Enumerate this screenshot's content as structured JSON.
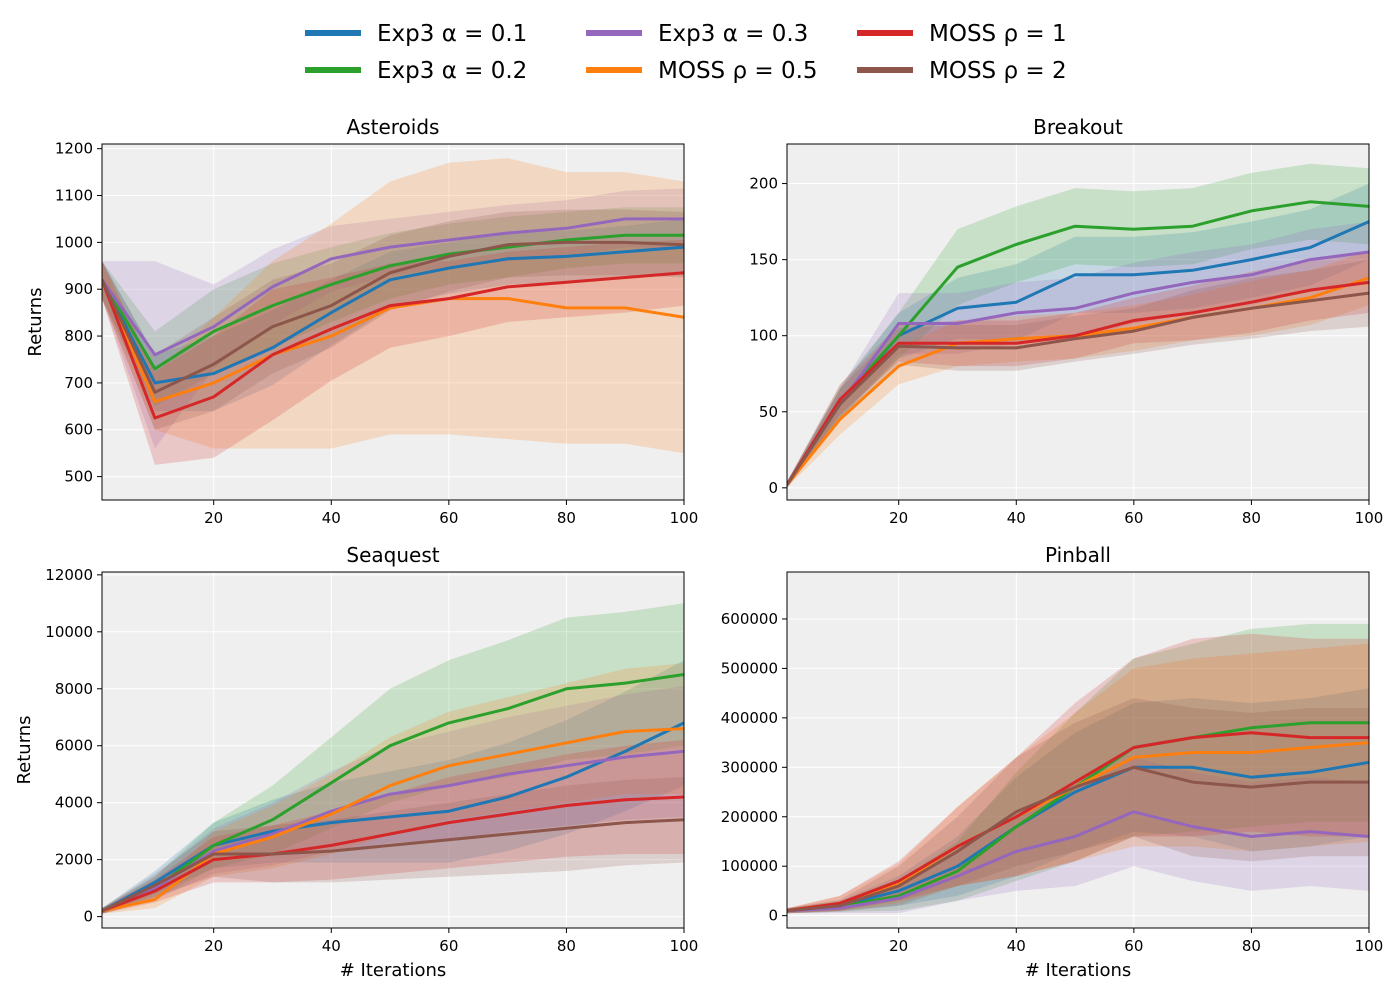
{
  "legend": {
    "entries": [
      {
        "label": "Exp3 α = 0.1",
        "color": "#1f77b4"
      },
      {
        "label": "Exp3 α = 0.2",
        "color": "#2ca02c"
      },
      {
        "label": "Exp3 α = 0.3",
        "color": "#9467bd"
      },
      {
        "label": "MOSS ρ = 0.5",
        "color": "#ff7f0e"
      },
      {
        "label": "MOSS ρ = 1",
        "color": "#d62728"
      },
      {
        "label": "MOSS ρ = 2",
        "color": "#8c564b"
      }
    ]
  },
  "chart_data": [
    {
      "type": "line",
      "title": "Asteroids",
      "xlabel": "",
      "ylabel": "Returns",
      "xlim": [
        1,
        100
      ],
      "ylim": [
        450,
        1210
      ],
      "xticks": [
        20,
        40,
        60,
        80,
        100
      ],
      "yticks": [
        500,
        600,
        700,
        800,
        900,
        1000,
        1100,
        1200
      ],
      "x": [
        1,
        10,
        20,
        30,
        40,
        50,
        60,
        70,
        80,
        90,
        100
      ],
      "series": [
        {
          "name": "Exp3 α = 0.1",
          "color": "#1f77b4",
          "values": [
            920,
            700,
            720,
            775,
            850,
            920,
            945,
            965,
            970,
            980,
            990
          ],
          "spread": [
            40,
            60,
            80,
            80,
            70,
            60,
            55,
            55,
            55,
            55,
            60
          ]
        },
        {
          "name": "Exp3 α = 0.2",
          "color": "#2ca02c",
          "values": [
            920,
            730,
            810,
            865,
            910,
            950,
            975,
            990,
            1005,
            1015,
            1015
          ],
          "spread": [
            40,
            80,
            90,
            90,
            80,
            70,
            65,
            65,
            60,
            60,
            60
          ]
        },
        {
          "name": "Exp3 α = 0.3",
          "color": "#9467bd",
          "values": [
            920,
            760,
            820,
            905,
            965,
            990,
            1005,
            1020,
            1030,
            1050,
            1050
          ],
          "spread": [
            40,
            200,
            90,
            80,
            70,
            60,
            60,
            60,
            60,
            60,
            65
          ]
        },
        {
          "name": "MOSS ρ = 0.5",
          "color": "#ff7f0e",
          "values": [
            920,
            660,
            700,
            760,
            800,
            860,
            880,
            880,
            860,
            860,
            840
          ],
          "spread": [
            40,
            60,
            140,
            200,
            240,
            270,
            290,
            300,
            290,
            290,
            290
          ]
        },
        {
          "name": "MOSS ρ = 1",
          "color": "#d62728",
          "values": [
            920,
            625,
            670,
            760,
            815,
            865,
            880,
            905,
            915,
            925,
            935
          ],
          "spread": [
            40,
            100,
            130,
            140,
            110,
            90,
            80,
            75,
            75,
            75,
            70
          ]
        },
        {
          "name": "MOSS ρ = 2",
          "color": "#8c564b",
          "values": [
            920,
            680,
            740,
            820,
            865,
            935,
            970,
            995,
            1000,
            1000,
            995
          ],
          "spread": [
            40,
            80,
            100,
            100,
            90,
            80,
            75,
            70,
            70,
            70,
            70
          ]
        }
      ]
    },
    {
      "type": "line",
      "title": "Breakout",
      "xlabel": "",
      "ylabel": "",
      "xlim": [
        1,
        100
      ],
      "ylim": [
        -8,
        226
      ],
      "xticks": [
        20,
        40,
        60,
        80,
        100
      ],
      "yticks": [
        0,
        50,
        100,
        150,
        200
      ],
      "x": [
        1,
        10,
        20,
        30,
        40,
        50,
        60,
        70,
        80,
        90,
        100
      ],
      "series": [
        {
          "name": "Exp3 α = 0.1",
          "color": "#1f77b4",
          "values": [
            2,
            55,
            100,
            118,
            122,
            140,
            140,
            143,
            150,
            158,
            175
          ],
          "spread": [
            2,
            10,
            15,
            20,
            25,
            25,
            25,
            25,
            25,
            25,
            25
          ]
        },
        {
          "name": "Exp3 α = 0.2",
          "color": "#2ca02c",
          "values": [
            2,
            57,
            100,
            145,
            160,
            172,
            170,
            172,
            182,
            188,
            185
          ],
          "spread": [
            2,
            10,
            15,
            25,
            25,
            25,
            25,
            25,
            25,
            25,
            25
          ]
        },
        {
          "name": "Exp3 α = 0.3",
          "color": "#9467bd",
          "values": [
            2,
            55,
            108,
            108,
            115,
            118,
            128,
            135,
            140,
            150,
            155
          ],
          "spread": [
            2,
            10,
            20,
            20,
            20,
            20,
            20,
            20,
            20,
            20,
            20
          ]
        },
        {
          "name": "MOSS ρ = 0.5",
          "color": "#ff7f0e",
          "values": [
            2,
            45,
            80,
            95,
            98,
            100,
            105,
            112,
            118,
            125,
            138
          ],
          "spread": [
            2,
            10,
            12,
            15,
            15,
            15,
            15,
            15,
            18,
            18,
            18
          ]
        },
        {
          "name": "MOSS ρ = 1",
          "color": "#d62728",
          "values": [
            2,
            58,
            95,
            95,
            95,
            100,
            110,
            115,
            122,
            130,
            135
          ],
          "spread": [
            2,
            10,
            12,
            15,
            15,
            15,
            15,
            18,
            20,
            20,
            20
          ]
        },
        {
          "name": "MOSS ρ = 2",
          "color": "#8c564b",
          "values": [
            2,
            55,
            93,
            92,
            92,
            98,
            103,
            112,
            118,
            123,
            128
          ],
          "spread": [
            2,
            10,
            12,
            15,
            15,
            15,
            15,
            18,
            20,
            20,
            22
          ]
        }
      ]
    },
    {
      "type": "line",
      "title": "Seaquest",
      "xlabel": "# Iterations",
      "ylabel": "Returns",
      "xlim": [
        1,
        100
      ],
      "ylim": [
        -400,
        12100
      ],
      "xticks": [
        20,
        40,
        60,
        80,
        100
      ],
      "yticks": [
        0,
        2000,
        4000,
        6000,
        8000,
        10000,
        12000
      ],
      "x": [
        1,
        10,
        20,
        30,
        40,
        50,
        60,
        70,
        80,
        90,
        100
      ],
      "series": [
        {
          "name": "Exp3 α = 0.1",
          "color": "#1f77b4",
          "values": [
            200,
            1200,
            2500,
            3000,
            3300,
            3500,
            3700,
            4200,
            4900,
            5800,
            6800
          ],
          "spread": [
            100,
            400,
            800,
            1100,
            1400,
            1600,
            1800,
            1900,
            2000,
            2100,
            2200
          ]
        },
        {
          "name": "Exp3 α = 0.2",
          "color": "#2ca02c",
          "values": [
            200,
            1000,
            2500,
            3400,
            4700,
            6000,
            6800,
            7300,
            8000,
            8200,
            8500
          ],
          "spread": [
            100,
            400,
            800,
            1200,
            1600,
            2000,
            2200,
            2400,
            2500,
            2500,
            2500
          ]
        },
        {
          "name": "Exp3 α = 0.3",
          "color": "#9467bd",
          "values": [
            200,
            1000,
            2300,
            2900,
            3700,
            4300,
            4600,
            5000,
            5300,
            5600,
            5800
          ],
          "spread": [
            100,
            400,
            800,
            1100,
            1400,
            1700,
            1900,
            2000,
            2100,
            2200,
            2300
          ]
        },
        {
          "name": "MOSS ρ = 0.5",
          "color": "#ff7f0e",
          "values": [
            200,
            600,
            2200,
            2800,
            3600,
            4600,
            5300,
            5700,
            6100,
            6500,
            6600
          ],
          "spread": [
            100,
            300,
            800,
            1100,
            1400,
            1700,
            1900,
            2000,
            2100,
            2200,
            2300
          ]
        },
        {
          "name": "MOSS ρ = 1",
          "color": "#d62728",
          "values": [
            200,
            900,
            2000,
            2200,
            2500,
            2900,
            3300,
            3600,
            3900,
            4100,
            4200
          ],
          "spread": [
            100,
            400,
            800,
            1000,
            1200,
            1400,
            1600,
            1700,
            1800,
            1900,
            2000
          ]
        },
        {
          "name": "MOSS ρ = 2",
          "color": "#8c564b",
          "values": [
            200,
            1100,
            2200,
            2200,
            2300,
            2500,
            2700,
            2900,
            3100,
            3300,
            3400
          ],
          "spread": [
            100,
            400,
            800,
            1000,
            1100,
            1200,
            1300,
            1400,
            1500,
            1500,
            1500
          ]
        }
      ]
    },
    {
      "type": "line",
      "title": "Pinball",
      "xlabel": "# Iterations",
      "ylabel": "",
      "xlim": [
        1,
        100
      ],
      "ylim": [
        -25000,
        695000
      ],
      "xticks": [
        20,
        40,
        60,
        80,
        100
      ],
      "yticks": [
        0,
        100000,
        200000,
        300000,
        400000,
        500000,
        600000
      ],
      "x": [
        1,
        10,
        20,
        30,
        40,
        50,
        60,
        70,
        80,
        90,
        100
      ],
      "series": [
        {
          "name": "Exp3 α = 0.1",
          "color": "#1f77b4",
          "values": [
            10000,
            20000,
            50000,
            100000,
            180000,
            250000,
            300000,
            300000,
            280000,
            290000,
            310000
          ],
          "spread": [
            5000,
            10000,
            30000,
            60000,
            100000,
            120000,
            130000,
            140000,
            150000,
            150000,
            150000
          ]
        },
        {
          "name": "Exp3 α = 0.2",
          "color": "#2ca02c",
          "values": [
            10000,
            18000,
            40000,
            90000,
            180000,
            260000,
            340000,
            360000,
            380000,
            390000,
            390000
          ],
          "spread": [
            5000,
            10000,
            30000,
            60000,
            110000,
            150000,
            180000,
            190000,
            200000,
            200000,
            200000
          ]
        },
        {
          "name": "Exp3 α = 0.3",
          "color": "#9467bd",
          "values": [
            10000,
            15000,
            35000,
            80000,
            130000,
            160000,
            210000,
            180000,
            160000,
            170000,
            160000
          ],
          "spread": [
            5000,
            10000,
            30000,
            50000,
            80000,
            100000,
            110000,
            110000,
            110000,
            110000,
            110000
          ]
        },
        {
          "name": "MOSS ρ = 0.5",
          "color": "#ff7f0e",
          "values": [
            10000,
            25000,
            65000,
            140000,
            200000,
            260000,
            320000,
            330000,
            330000,
            340000,
            350000
          ],
          "spread": [
            5000,
            15000,
            40000,
            80000,
            120000,
            150000,
            180000,
            190000,
            200000,
            200000,
            200000
          ]
        },
        {
          "name": "MOSS ρ = 1",
          "color": "#d62728",
          "values": [
            10000,
            25000,
            70000,
            140000,
            200000,
            270000,
            340000,
            360000,
            370000,
            360000,
            360000
          ],
          "spread": [
            5000,
            15000,
            40000,
            80000,
            120000,
            160000,
            180000,
            200000,
            200000,
            200000,
            200000
          ]
        },
        {
          "name": "MOSS ρ = 2",
          "color": "#8c564b",
          "values": [
            10000,
            20000,
            60000,
            130000,
            210000,
            260000,
            300000,
            270000,
            260000,
            270000,
            270000
          ],
          "spread": [
            5000,
            12000,
            40000,
            70000,
            110000,
            130000,
            140000,
            150000,
            150000,
            150000,
            150000
          ]
        }
      ]
    }
  ]
}
